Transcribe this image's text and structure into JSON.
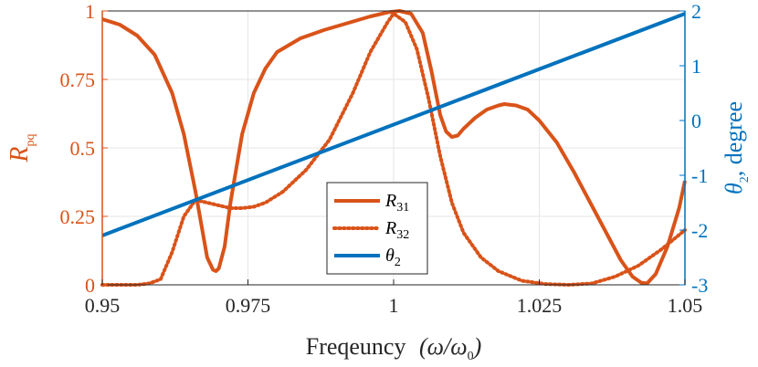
{
  "chart_data": {
    "type": "line",
    "xlabel": "Freqeuncy (ω/ω₀)",
    "xlabel_prefix": "Freqeuncy",
    "xlabel_math": "(ω/ω",
    "xlabel_math_sub": "0",
    "xlabel_math_close": ")",
    "ylabel_left": "R",
    "ylabel_left_sub": "pq",
    "ylabel_right": "θ",
    "ylabel_right_sub": "2",
    "ylabel_right_suffix": ", degree",
    "xlim": [
      0.95,
      1.05
    ],
    "ylim_left": [
      0,
      1
    ],
    "ylim_right": [
      -3,
      2
    ],
    "x_ticks": [
      "0.95",
      "0.975",
      "1",
      "1.025",
      "1.05"
    ],
    "x_tick_values": [
      0.95,
      0.975,
      1.0,
      1.025,
      1.05
    ],
    "y_left_ticks": [
      "0",
      "0.25",
      "0.5",
      "0.75",
      "1"
    ],
    "y_left_tick_values": [
      0,
      0.25,
      0.5,
      0.75,
      1
    ],
    "y_right_ticks": [
      "-3",
      "-2",
      "-1",
      "0",
      "1",
      "2"
    ],
    "y_right_tick_values": [
      -3,
      -2,
      -1,
      0,
      1,
      2
    ],
    "grid": true,
    "legend_position": "lower-center",
    "colors": {
      "R31": "#D95319",
      "R32": "#D95319",
      "theta2": "#0072BD",
      "grid": "#e6e6e6"
    },
    "series": [
      {
        "name": "R31",
        "label": "R",
        "label_sub": "31",
        "axis": "left",
        "style": "solid",
        "x": [
          0.95,
          0.953,
          0.956,
          0.959,
          0.962,
          0.964,
          0.966,
          0.967,
          0.968,
          0.969,
          0.9695,
          0.97,
          0.971,
          0.972,
          0.974,
          0.976,
          0.978,
          0.98,
          0.984,
          0.988,
          0.992,
          0.996,
          0.999,
          1.001,
          1.003,
          1.005,
          1.0065,
          1.008,
          1.009,
          1.01,
          1.011,
          1.012,
          1.014,
          1.016,
          1.018,
          1.019,
          1.021,
          1.023,
          1.025,
          1.028,
          1.031,
          1.034,
          1.037,
          1.039,
          1.041,
          1.0425,
          1.0435,
          1.045,
          1.047,
          1.049,
          1.05
        ],
        "y": [
          0.97,
          0.95,
          0.91,
          0.84,
          0.7,
          0.55,
          0.34,
          0.22,
          0.1,
          0.055,
          0.05,
          0.06,
          0.14,
          0.3,
          0.55,
          0.7,
          0.79,
          0.85,
          0.9,
          0.93,
          0.955,
          0.98,
          0.995,
          1.0,
          0.99,
          0.92,
          0.78,
          0.62,
          0.56,
          0.54,
          0.545,
          0.57,
          0.61,
          0.64,
          0.655,
          0.66,
          0.655,
          0.64,
          0.6,
          0.52,
          0.41,
          0.29,
          0.17,
          0.09,
          0.03,
          0.008,
          0.005,
          0.04,
          0.14,
          0.28,
          0.38
        ]
      },
      {
        "name": "R32",
        "label": "R",
        "label_sub": "32",
        "axis": "left",
        "style": "dotted",
        "x": [
          0.95,
          0.953,
          0.956,
          0.958,
          0.96,
          0.962,
          0.964,
          0.966,
          0.968,
          0.97,
          0.972,
          0.974,
          0.976,
          0.978,
          0.981,
          0.985,
          0.989,
          0.993,
          0.996,
          0.999,
          1.0,
          1.002,
          1.004,
          1.006,
          1.008,
          1.01,
          1.012,
          1.015,
          1.018,
          1.022,
          1.026,
          1.03,
          1.034,
          1.038,
          1.042,
          1.046,
          1.05
        ],
        "y": [
          0.0,
          0.0,
          0.0,
          0.005,
          0.02,
          0.12,
          0.25,
          0.31,
          0.3,
          0.29,
          0.28,
          0.28,
          0.285,
          0.3,
          0.34,
          0.42,
          0.53,
          0.7,
          0.85,
          0.96,
          0.99,
          0.96,
          0.86,
          0.68,
          0.47,
          0.3,
          0.19,
          0.1,
          0.05,
          0.015,
          0.003,
          0.0,
          0.005,
          0.03,
          0.07,
          0.13,
          0.2
        ]
      },
      {
        "name": "theta2",
        "label": "θ",
        "label_sub": "2",
        "axis": "right",
        "style": "solid",
        "x": [
          0.95,
          1.05
        ],
        "y": [
          -2.1,
          1.95
        ]
      }
    ]
  }
}
